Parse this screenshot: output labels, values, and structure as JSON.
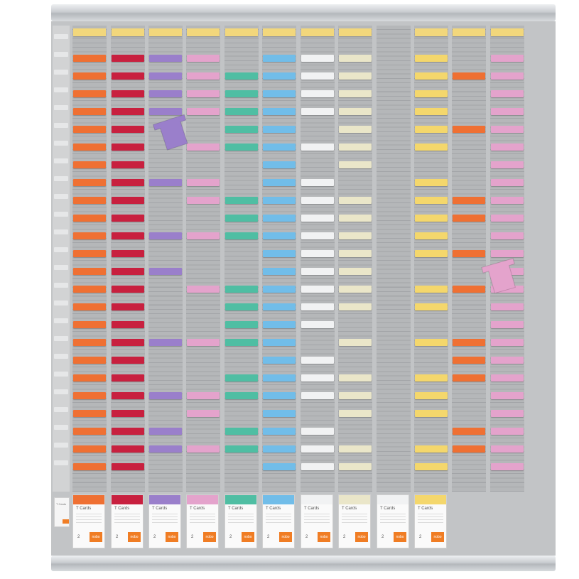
{
  "board": {
    "colors": {
      "orange": "#ef7033",
      "red": "#c8203f",
      "purple": "#9a7fcb",
      "pink": "#e4a3cc",
      "green": "#4fbea3",
      "blue": "#71bde9",
      "white": "#f1f2f3",
      "cream": "#eae6c9",
      "yellow": "#f4d76c",
      "frame": "#c2c4c6",
      "slot": "#b5b7b9"
    },
    "columns": [
      {
        "card_color": "orange",
        "cards": [
          1,
          2,
          3,
          4,
          5,
          6,
          7,
          8,
          9,
          10,
          11,
          12,
          13,
          14,
          15,
          16,
          17,
          18,
          19,
          20,
          21,
          22,
          23,
          24
        ]
      },
      {
        "card_color": "red",
        "cards": [
          1,
          2,
          3,
          4,
          5,
          6,
          7,
          8,
          9,
          10,
          11,
          12,
          13,
          14,
          15,
          16,
          17,
          18,
          19,
          20,
          21,
          22,
          23,
          24
        ]
      },
      {
        "card_color": "purple",
        "cards": [
          1,
          2,
          3,
          4,
          8,
          11,
          13,
          17,
          20,
          22,
          23
        ]
      },
      {
        "card_color": "pink",
        "cards": [
          1,
          2,
          3,
          4,
          6,
          8,
          9,
          11,
          14,
          17,
          20,
          21,
          23
        ]
      },
      {
        "card_color": "green",
        "cards": [
          2,
          3,
          4,
          5,
          6,
          9,
          10,
          11,
          14,
          15,
          16,
          17,
          19,
          20,
          22,
          23
        ]
      },
      {
        "card_color": "blue",
        "cards": [
          1,
          2,
          3,
          4,
          5,
          6,
          7,
          8,
          9,
          10,
          11,
          12,
          13,
          14,
          15,
          16,
          17,
          18,
          19,
          20,
          21,
          22,
          23,
          24
        ]
      },
      {
        "card_color": "white",
        "cards": [
          1,
          2,
          3,
          4,
          6,
          8,
          9,
          10,
          11,
          12,
          13,
          14,
          15,
          16,
          18,
          19,
          20,
          22,
          23,
          24
        ]
      },
      {
        "card_color": "cream",
        "cards": [
          1,
          2,
          3,
          4,
          5,
          6,
          7,
          9,
          10,
          11,
          12,
          13,
          14,
          15,
          17,
          19,
          20,
          21,
          23,
          24
        ]
      },
      {
        "card_color": "none",
        "cards": []
      },
      {
        "card_color": "yellow",
        "cards": [
          1,
          2,
          3,
          4,
          5,
          6,
          8,
          9,
          10,
          11,
          12,
          14,
          15,
          17,
          19,
          20,
          21,
          23,
          24
        ]
      },
      {
        "card_color": "orange",
        "cards": [
          2,
          5,
          9,
          10,
          12,
          14,
          17,
          18,
          19,
          22,
          23
        ]
      },
      {
        "card_color": "pink",
        "cards": [
          1,
          2,
          3,
          4,
          5,
          6,
          7,
          8,
          9,
          10,
          11,
          12,
          13,
          14,
          15,
          16,
          17,
          18,
          19,
          20,
          21,
          22,
          23,
          24
        ]
      }
    ],
    "loose_cards": [
      {
        "color": "purple",
        "column": 3
      },
      {
        "color": "pink",
        "column": 12
      }
    ],
    "packs": [
      {
        "label": "T Cards",
        "color": "orange",
        "number": "2",
        "logo": "nobo"
      },
      {
        "label": "T Cards",
        "color": "red",
        "number": "2",
        "logo": "nobo"
      },
      {
        "label": "T Cards",
        "color": "purple",
        "number": "2",
        "logo": "nobo"
      },
      {
        "label": "T Cards",
        "color": "pink",
        "number": "2",
        "logo": "nobo"
      },
      {
        "label": "T Cards",
        "color": "green",
        "number": "2",
        "logo": "nobo"
      },
      {
        "label": "T Cards",
        "color": "blue",
        "number": "2",
        "logo": "nobo"
      },
      {
        "label": "T Cards",
        "color": "white",
        "number": "2",
        "logo": "nobo"
      },
      {
        "label": "T Cards",
        "color": "cream",
        "number": "2",
        "logo": "nobo"
      },
      {
        "label": "T Cards",
        "color": "white",
        "number": "2",
        "logo": "nobo"
      },
      {
        "label": "T Cards",
        "color": "yellow",
        "number": "2",
        "logo": "nobo"
      }
    ],
    "index_strip": {
      "label": "T Cards",
      "logo": "nobo"
    }
  }
}
